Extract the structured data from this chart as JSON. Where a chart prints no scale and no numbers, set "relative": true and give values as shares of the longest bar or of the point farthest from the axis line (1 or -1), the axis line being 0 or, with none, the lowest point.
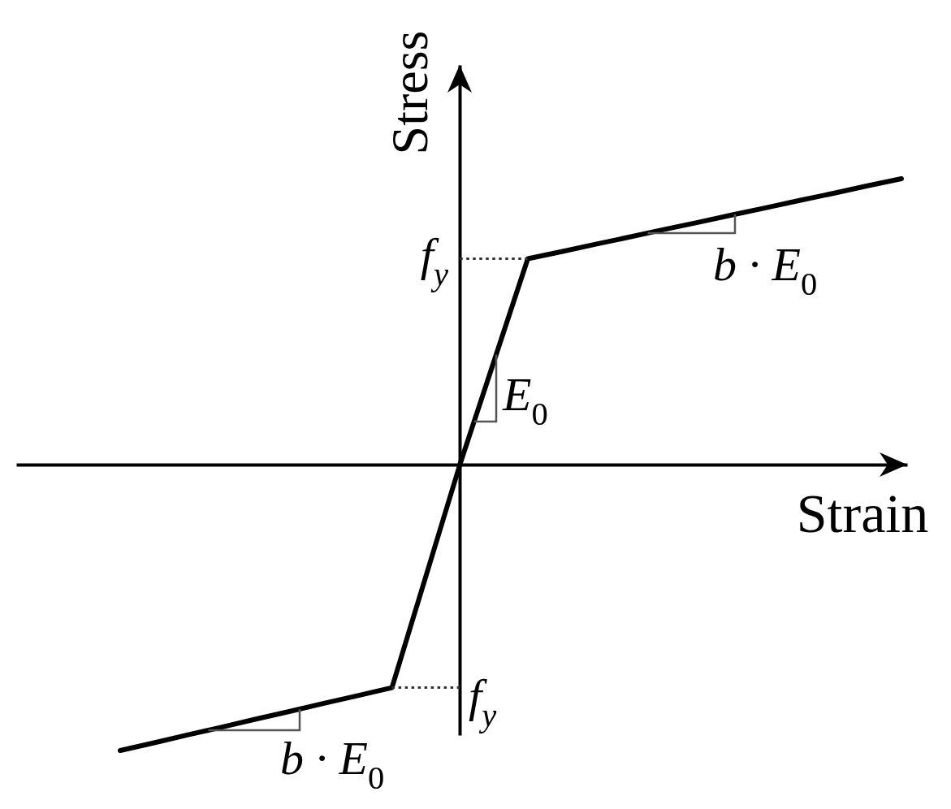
{
  "chart_data": {
    "type": "line",
    "xlabel": "Strain",
    "ylabel": "Stress",
    "relative": true,
    "categories": [
      null,
      null,
      null,
      null,
      null,
      null,
      null,
      null,
      null,
      null,
      null,
      null,
      null,
      null,
      null,
      null,
      null,
      null,
      null,
      null,
      null,
      null,
      null,
      null
    ],
    "series": [
      {
        "color": "#000000",
        "values": [
          -1,
          -0.973,
          -0.945,
          -0.918,
          -0.89,
          -0.863,
          -0.835,
          -0.808,
          -0.78,
          -0.39,
          0,
          0.36,
          0.72,
          0.745,
          0.771,
          0.796,
          0.822,
          0.847,
          0.873,
          0.898,
          0.924,
          0.949,
          0.975,
          1
        ]
      },
      {
        "color": "#333333",
        "line_style": "dotted",
        "values": [
          null,
          null,
          null,
          null,
          null,
          null,
          null,
          null,
          null,
          null,
          0.72,
          0.72,
          0.72,
          null,
          null,
          null,
          null,
          null,
          null,
          null,
          null,
          null,
          null,
          null
        ]
      },
      {
        "color": "#333333",
        "line_style": "dotted",
        "values": [
          null,
          null,
          null,
          null,
          null,
          null,
          null,
          null,
          -0.78,
          -0.78,
          -0.78,
          null,
          null,
          null,
          null,
          null,
          null,
          null,
          null,
          null,
          null,
          null,
          null,
          null
        ]
      }
    ],
    "annotations": [
      "f$_{y}$",
      "f$_{y}$",
      "E$_{0}$",
      "b · E$_{0}$",
      "b · E$_{0}$"
    ]
  }
}
